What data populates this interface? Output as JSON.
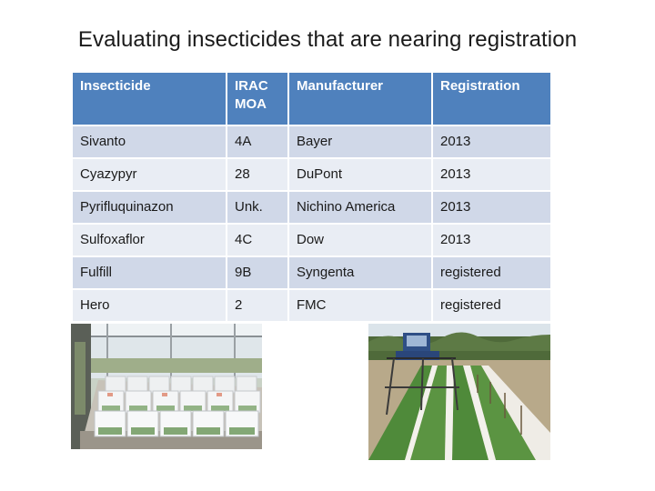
{
  "title": "Evaluating insecticides that are nearing registration",
  "table": {
    "headers": [
      "Insecticide",
      "IRAC MOA",
      "Manufacturer",
      "Registration"
    ],
    "rows": [
      [
        "Sivanto",
        "4A",
        "Bayer",
        "2013"
      ],
      [
        "Cyazypyr",
        "28",
        "DuPont",
        "2013"
      ],
      [
        "Pyrifluquinazon",
        "Unk.",
        "Nichino America",
        "2013"
      ],
      [
        "Sulfoxaflor",
        "4C",
        "Dow",
        "2013"
      ],
      [
        "Fulfill",
        "9B",
        "Syngenta",
        "registered"
      ],
      [
        "Hero",
        "2",
        "FMC",
        "registered"
      ]
    ]
  },
  "colors": {
    "header_bg": "#4f81bd",
    "row_odd_bg": "#d0d8e8",
    "row_even_bg": "#e9edf4"
  }
}
